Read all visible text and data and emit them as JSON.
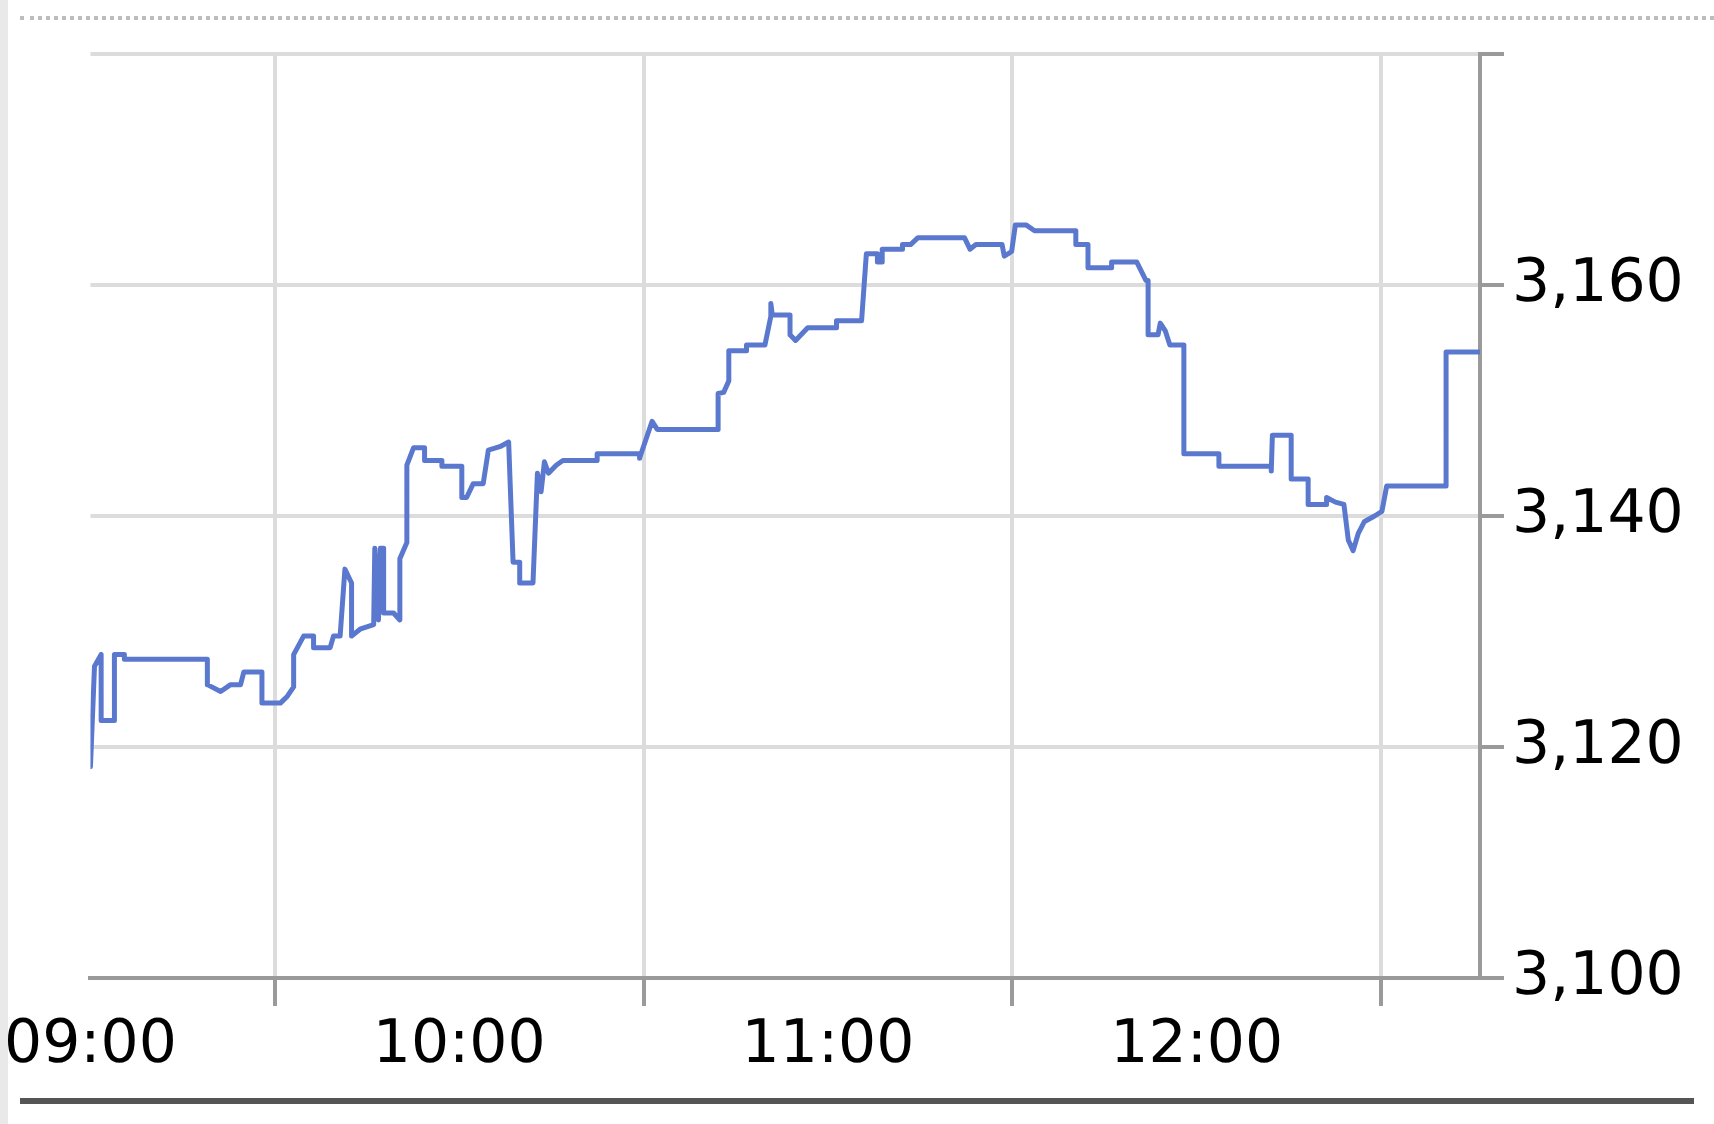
{
  "chart_data": {
    "type": "line",
    "x": [
      9.0,
      9.011,
      9.029,
      9.029,
      9.065,
      9.065,
      9.092,
      9.092,
      9.317,
      9.317,
      9.353,
      9.38,
      9.407,
      9.416,
      9.465,
      9.465,
      9.515,
      9.534,
      9.551,
      9.551,
      9.578,
      9.605,
      9.605,
      9.65,
      9.659,
      9.677,
      9.69,
      9.708,
      9.708,
      9.731,
      9.768,
      9.771,
      9.781,
      9.786,
      9.795,
      9.795,
      9.822,
      9.839,
      9.839,
      9.858,
      9.858,
      9.876,
      9.906,
      9.906,
      9.953,
      9.953,
      10.007,
      10.007,
      10.02,
      10.038,
      10.065,
      10.079,
      10.11,
      10.134,
      10.146,
      10.164,
      10.164,
      10.2,
      10.212,
      10.222,
      10.231,
      10.242,
      10.263,
      10.281,
      10.374,
      10.374,
      10.489,
      10.489,
      10.523,
      10.537,
      10.702,
      10.702,
      10.717,
      10.731,
      10.731,
      10.779,
      10.779,
      10.829,
      10.845,
      10.845,
      10.849,
      10.897,
      10.897,
      10.912,
      10.945,
      11.023,
      11.023,
      11.091,
      11.104,
      11.134,
      11.134,
      11.147,
      11.147,
      11.202,
      11.202,
      11.224,
      11.244,
      11.37,
      11.385,
      11.401,
      11.472,
      11.478,
      11.498,
      11.508,
      11.537,
      11.56,
      11.672,
      11.672,
      11.705,
      11.705,
      11.769,
      11.769,
      11.837,
      11.862,
      11.868,
      11.868,
      11.895,
      11.901,
      11.915,
      11.927,
      11.965,
      11.965,
      12.06,
      12.06,
      12.202,
      12.202,
      12.205,
      12.256,
      12.256,
      12.302,
      12.302,
      12.352,
      12.352,
      12.376,
      12.399,
      12.411,
      12.424,
      12.438,
      12.454,
      12.482,
      12.502,
      12.515,
      12.676,
      12.676,
      12.768
    ],
    "values": [
      3118.3,
      3127.0,
      3128.0,
      3122.3,
      3122.3,
      3128.0,
      3128.0,
      3127.6,
      3127.6,
      3125.4,
      3124.8,
      3125.4,
      3125.4,
      3126.5,
      3126.5,
      3123.8,
      3123.8,
      3124.4,
      3125.2,
      3128.0,
      3129.6,
      3129.6,
      3128.6,
      3128.6,
      3129.6,
      3129.6,
      3135.4,
      3134.2,
      3129.6,
      3130.2,
      3130.6,
      3137.2,
      3131.0,
      3137.2,
      3137.2,
      3131.6,
      3131.6,
      3131.0,
      3136.3,
      3137.7,
      3144.4,
      3145.9,
      3145.9,
      3144.8,
      3144.8,
      3144.3,
      3144.3,
      3141.6,
      3141.6,
      3142.8,
      3142.8,
      3145.7,
      3146.0,
      3146.4,
      3136.0,
      3136.0,
      3134.2,
      3134.2,
      3143.7,
      3142.1,
      3144.7,
      3143.7,
      3144.4,
      3144.8,
      3144.8,
      3145.4,
      3145.4,
      3145.0,
      3148.2,
      3147.5,
      3147.5,
      3150.6,
      3150.7,
      3151.7,
      3154.3,
      3154.3,
      3154.8,
      3154.8,
      3157.3,
      3158.4,
      3157.4,
      3157.4,
      3155.7,
      3155.2,
      3156.3,
      3156.3,
      3156.9,
      3156.9,
      3162.7,
      3162.7,
      3162.0,
      3162.0,
      3163.1,
      3163.1,
      3163.5,
      3163.5,
      3164.1,
      3164.1,
      3163.1,
      3163.5,
      3163.5,
      3162.5,
      3162.9,
      3165.2,
      3165.2,
      3164.7,
      3164.7,
      3163.5,
      3163.5,
      3161.5,
      3161.5,
      3162.0,
      3162.0,
      3160.4,
      3160.4,
      3155.7,
      3155.7,
      3156.7,
      3156.0,
      3154.8,
      3154.8,
      3145.4,
      3145.4,
      3144.3,
      3144.3,
      3143.9,
      3147.0,
      3147.0,
      3143.2,
      3143.2,
      3141.0,
      3141.0,
      3141.6,
      3141.2,
      3141.0,
      3137.9,
      3137.0,
      3138.5,
      3139.5,
      3140.0,
      3140.4,
      3142.6,
      3142.6,
      3154.2,
      3154.2
    ],
    "color": "#5b78cf",
    "xlim": [
      9,
      12.768
    ],
    "xticks": [
      {
        "value": 9,
        "label": "09:00"
      },
      {
        "value": 9.5,
        "label": null
      },
      {
        "value": 10,
        "label": "10:00"
      },
      {
        "value": 10.5,
        "label": null
      },
      {
        "value": 11,
        "label": "11:00"
      },
      {
        "value": 11.5,
        "label": null
      },
      {
        "value": 12,
        "label": "12:00"
      },
      {
        "value": 12.5,
        "label": null
      }
    ],
    "ylim": [
      3100,
      3180
    ],
    "yticks": [
      {
        "value": 3100,
        "label": "3,100"
      },
      {
        "value": 3120,
        "label": "3,120"
      },
      {
        "value": 3140,
        "label": "3,140"
      },
      {
        "value": 3160,
        "label": "3,160"
      },
      {
        "value": 3180,
        "label": null
      }
    ],
    "grid": true
  }
}
